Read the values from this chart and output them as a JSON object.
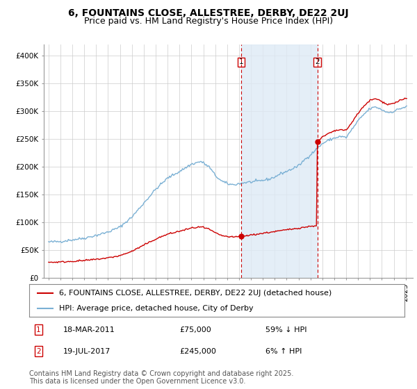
{
  "title1": "6, FOUNTAINS CLOSE, ALLESTREE, DERBY, DE22 2UJ",
  "title2": "Price paid vs. HM Land Registry's House Price Index (HPI)",
  "ylim": [
    0,
    420000
  ],
  "yticks": [
    0,
    50000,
    100000,
    150000,
    200000,
    250000,
    300000,
    350000,
    400000
  ],
  "ytick_labels": [
    "£0",
    "£50K",
    "£100K",
    "£150K",
    "£200K",
    "£250K",
    "£300K",
    "£350K",
    "£400K"
  ],
  "sale1_yr": 2011.17,
  "sale1_price": 75000,
  "sale2_yr": 2017.58,
  "sale2_price": 245000,
  "legend1": "6, FOUNTAINS CLOSE, ALLESTREE, DERBY, DE22 2UJ (detached house)",
  "legend2": "HPI: Average price, detached house, City of Derby",
  "table_row1": [
    "1",
    "18-MAR-2011",
    "£75,000",
    "59% ↓ HPI"
  ],
  "table_row2": [
    "2",
    "19-JUL-2017",
    "£245,000",
    "6% ↑ HPI"
  ],
  "footnote": "Contains HM Land Registry data © Crown copyright and database right 2025.\nThis data is licensed under the Open Government Licence v3.0.",
  "line_color_red": "#cc0000",
  "line_color_blue": "#7ab0d4",
  "fill_color_blue": "#deeaf5",
  "vline_color": "#cc0000",
  "background_color": "#ffffff",
  "grid_color": "#cccccc",
  "title_fontsize": 10,
  "subtitle_fontsize": 9,
  "tick_fontsize": 7.5,
  "legend_fontsize": 8,
  "footnote_fontsize": 7
}
